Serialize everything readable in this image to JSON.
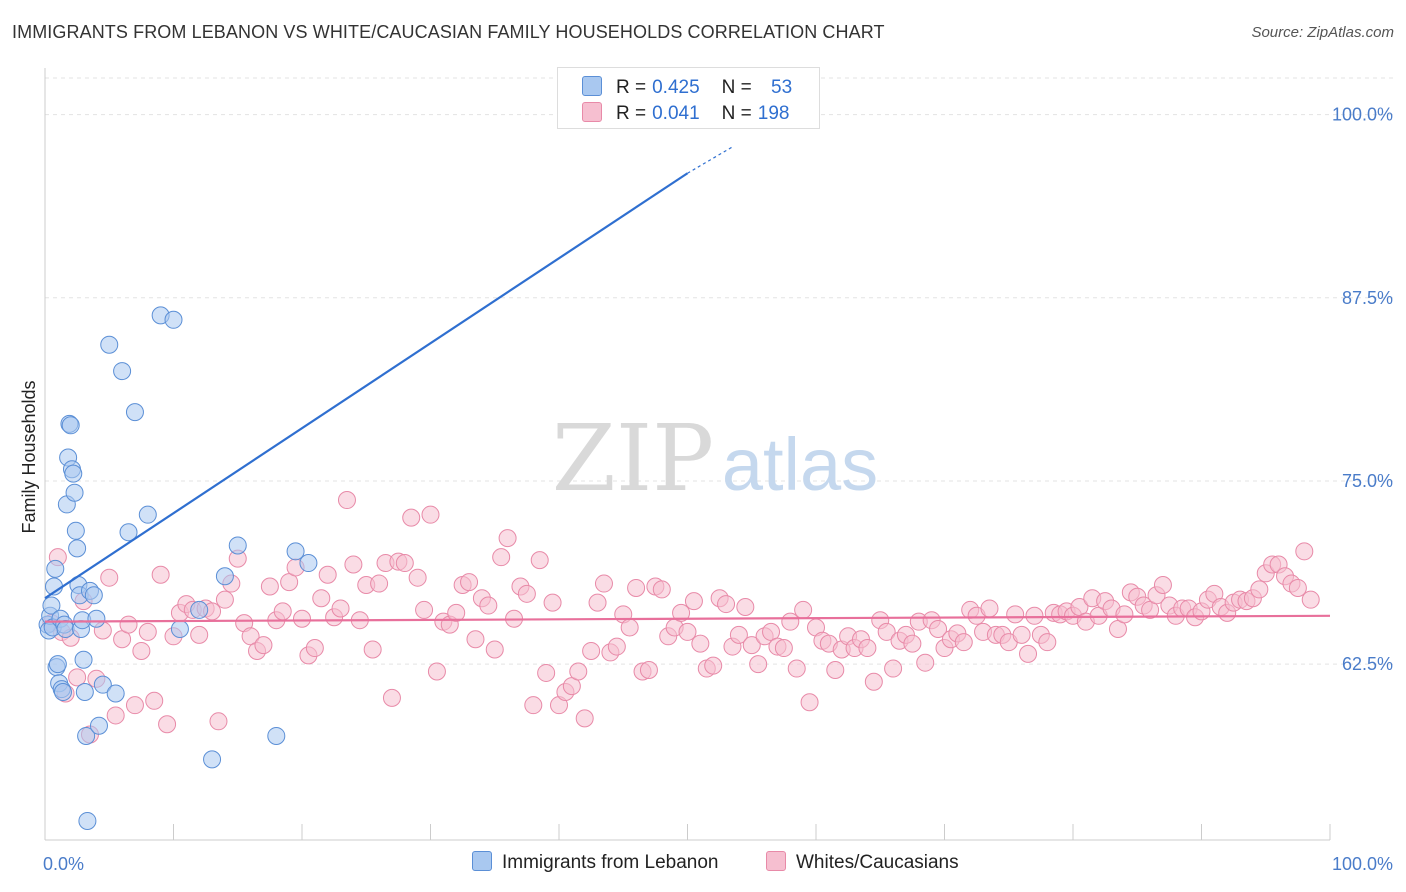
{
  "header": {
    "title": "IMMIGRANTS FROM LEBANON VS WHITE/CAUCASIAN FAMILY HOUSEHOLDS CORRELATION CHART",
    "source": "Source: ZipAtlas.com"
  },
  "watermark": {
    "zip": "ZIP",
    "atlas": "atlas"
  },
  "legend": {
    "rows": [
      {
        "r_label": "R =",
        "r_value": "0.425",
        "n_label": "N =",
        "n_value": "53",
        "color": "#a9c8f0",
        "border": "#5b8fd6"
      },
      {
        "r_label": "R =",
        "r_value": "0.041",
        "n_label": "N =",
        "n_value": "198",
        "color": "#f6bfd0",
        "border": "#e88aa8"
      }
    ]
  },
  "bottom_legend": {
    "series1": "Immigrants from Lebanon",
    "series2": "Whites/Caucasians"
  },
  "chart_data": {
    "type": "scatter",
    "title": "IMMIGRANTS FROM LEBANON VS WHITE/CAUCASIAN FAMILY HOUSEHOLDS CORRELATION CHART",
    "xlabel": "",
    "ylabel": "Family Households",
    "xlim": [
      0,
      100
    ],
    "ylim": [
      50.5,
      102.5
    ],
    "x_tick_labels": [
      "0.0%",
      "100.0%"
    ],
    "y_ticks": [
      62.5,
      75.0,
      87.5,
      100.0
    ],
    "y_tick_labels": [
      "62.5%",
      "75.0%",
      "87.5%",
      "100.0%"
    ],
    "grid": true,
    "series": [
      {
        "name": "Immigrants from Lebanon",
        "color": "#a9c8f0",
        "edge": "#5b8fd6",
        "trend": {
          "x0": 0,
          "y0": 67.0,
          "x1": 50,
          "y1": 96.0,
          "dash_to_x": 53.5,
          "dash_to_y": 97.8,
          "color": "#2f6fd0"
        },
        "points": [
          [
            0.2,
            65.2
          ],
          [
            0.3,
            64.8
          ],
          [
            0.4,
            65.8
          ],
          [
            0.5,
            66.5
          ],
          [
            0.6,
            65.0
          ],
          [
            0.7,
            67.8
          ],
          [
            0.8,
            69.0
          ],
          [
            0.9,
            62.3
          ],
          [
            1.0,
            62.5
          ],
          [
            1.1,
            61.2
          ],
          [
            1.2,
            65.6
          ],
          [
            1.3,
            60.8
          ],
          [
            1.4,
            60.6
          ],
          [
            1.5,
            65.2
          ],
          [
            1.6,
            64.9
          ],
          [
            1.7,
            73.4
          ],
          [
            1.8,
            76.6
          ],
          [
            1.9,
            78.9
          ],
          [
            2.0,
            78.8
          ],
          [
            2.1,
            75.8
          ],
          [
            2.2,
            75.5
          ],
          [
            2.3,
            74.2
          ],
          [
            2.4,
            71.6
          ],
          [
            2.5,
            70.4
          ],
          [
            2.6,
            67.9
          ],
          [
            2.7,
            67.2
          ],
          [
            2.8,
            64.9
          ],
          [
            2.9,
            65.5
          ],
          [
            3.0,
            62.8
          ],
          [
            3.1,
            60.6
          ],
          [
            3.2,
            57.6
          ],
          [
            3.3,
            51.8
          ],
          [
            3.5,
            67.5
          ],
          [
            3.8,
            67.2
          ],
          [
            4.0,
            65.6
          ],
          [
            4.2,
            58.3
          ],
          [
            4.5,
            61.1
          ],
          [
            5.0,
            84.3
          ],
          [
            5.5,
            60.5
          ],
          [
            6.0,
            82.5
          ],
          [
            6.5,
            71.5
          ],
          [
            7.0,
            79.7
          ],
          [
            8.0,
            72.7
          ],
          [
            9.0,
            86.3
          ],
          [
            10.0,
            86.0
          ],
          [
            10.5,
            64.9
          ],
          [
            12.0,
            66.2
          ],
          [
            13.0,
            56.0
          ],
          [
            14.0,
            68.5
          ],
          [
            15.0,
            70.6
          ],
          [
            18.0,
            57.6
          ],
          [
            19.5,
            70.2
          ],
          [
            20.5,
            69.4
          ]
        ]
      },
      {
        "name": "Whites/Caucasians",
        "color": "#f6bfd0",
        "edge": "#e88aa8",
        "trend": {
          "x0": 0,
          "y0": 65.4,
          "x1": 100,
          "y1": 65.8,
          "color": "#e8709b"
        },
        "points": [
          [
            0.5,
            65.3
          ],
          [
            1.0,
            69.8
          ],
          [
            1.3,
            64.7
          ],
          [
            1.6,
            60.5
          ],
          [
            2.0,
            64.3
          ],
          [
            2.5,
            61.6
          ],
          [
            3.0,
            66.8
          ],
          [
            3.5,
            57.7
          ],
          [
            4.0,
            61.5
          ],
          [
            4.5,
            64.8
          ],
          [
            5.0,
            68.4
          ],
          [
            5.5,
            59.0
          ],
          [
            6.0,
            64.2
          ],
          [
            6.5,
            65.2
          ],
          [
            7.0,
            59.7
          ],
          [
            7.5,
            63.4
          ],
          [
            8.0,
            64.7
          ],
          [
            8.5,
            60.0
          ],
          [
            9.0,
            68.6
          ],
          [
            9.5,
            58.4
          ],
          [
            10.0,
            64.4
          ],
          [
            10.5,
            66.0
          ],
          [
            11.0,
            66.6
          ],
          [
            11.5,
            66.2
          ],
          [
            12.0,
            64.5
          ],
          [
            12.5,
            66.3
          ],
          [
            13.0,
            66.1
          ],
          [
            13.5,
            58.6
          ],
          [
            14.0,
            66.9
          ],
          [
            14.5,
            68.0
          ],
          [
            15.0,
            69.7
          ],
          [
            15.5,
            65.3
          ],
          [
            16.0,
            64.4
          ],
          [
            16.5,
            63.4
          ],
          [
            17.0,
            63.8
          ],
          [
            17.5,
            67.8
          ],
          [
            18.0,
            65.5
          ],
          [
            18.5,
            66.1
          ],
          [
            19.0,
            68.1
          ],
          [
            19.5,
            69.1
          ],
          [
            20.0,
            65.6
          ],
          [
            20.5,
            63.1
          ],
          [
            21.0,
            63.6
          ],
          [
            21.5,
            67.0
          ],
          [
            22.0,
            68.6
          ],
          [
            22.5,
            65.7
          ],
          [
            23.0,
            66.3
          ],
          [
            23.5,
            73.7
          ],
          [
            24.0,
            69.3
          ],
          [
            24.5,
            65.5
          ],
          [
            25.0,
            67.9
          ],
          [
            25.5,
            63.5
          ],
          [
            26.0,
            68.0
          ],
          [
            26.5,
            69.4
          ],
          [
            27.0,
            60.2
          ],
          [
            27.5,
            69.5
          ],
          [
            28.0,
            69.4
          ],
          [
            28.5,
            72.5
          ],
          [
            29.0,
            68.4
          ],
          [
            29.5,
            66.2
          ],
          [
            30.0,
            72.7
          ],
          [
            30.5,
            62.0
          ],
          [
            31.0,
            65.4
          ],
          [
            31.5,
            65.2
          ],
          [
            32.0,
            66.0
          ],
          [
            32.5,
            67.9
          ],
          [
            33.0,
            68.1
          ],
          [
            33.5,
            64.2
          ],
          [
            34.0,
            67.0
          ],
          [
            34.5,
            66.5
          ],
          [
            35.0,
            63.5
          ],
          [
            35.5,
            69.8
          ],
          [
            36.0,
            71.1
          ],
          [
            36.5,
            65.6
          ],
          [
            37.0,
            67.8
          ],
          [
            37.5,
            67.3
          ],
          [
            38.0,
            59.7
          ],
          [
            38.5,
            69.6
          ],
          [
            39.0,
            61.9
          ],
          [
            39.5,
            66.7
          ],
          [
            40.0,
            59.7
          ],
          [
            40.5,
            60.6
          ],
          [
            41.0,
            61.0
          ],
          [
            41.5,
            62.0
          ],
          [
            42.0,
            58.8
          ],
          [
            42.5,
            63.4
          ],
          [
            43.0,
            66.7
          ],
          [
            43.5,
            68.0
          ],
          [
            44.0,
            63.3
          ],
          [
            44.5,
            63.7
          ],
          [
            45.0,
            65.9
          ],
          [
            45.5,
            65.0
          ],
          [
            46.0,
            67.7
          ],
          [
            46.5,
            62.0
          ],
          [
            47.0,
            62.1
          ],
          [
            47.5,
            67.8
          ],
          [
            48.0,
            67.6
          ],
          [
            48.5,
            64.4
          ],
          [
            49.0,
            65.0
          ],
          [
            49.5,
            66.0
          ],
          [
            50.0,
            64.7
          ],
          [
            50.5,
            66.8
          ],
          [
            51.0,
            63.9
          ],
          [
            51.5,
            62.2
          ],
          [
            52.0,
            62.4
          ],
          [
            52.5,
            67.0
          ],
          [
            53.0,
            66.6
          ],
          [
            53.5,
            63.7
          ],
          [
            54.0,
            64.5
          ],
          [
            54.5,
            66.4
          ],
          [
            55.0,
            63.8
          ],
          [
            55.5,
            62.5
          ],
          [
            56.0,
            64.4
          ],
          [
            56.5,
            64.7
          ],
          [
            57.0,
            63.7
          ],
          [
            57.5,
            63.6
          ],
          [
            58.0,
            65.4
          ],
          [
            58.5,
            62.2
          ],
          [
            59.0,
            66.2
          ],
          [
            59.5,
            59.9
          ],
          [
            60.0,
            65.0
          ],
          [
            60.5,
            64.1
          ],
          [
            61.0,
            63.9
          ],
          [
            61.5,
            62.1
          ],
          [
            62.0,
            63.5
          ],
          [
            62.5,
            64.4
          ],
          [
            63.0,
            63.6
          ],
          [
            63.5,
            64.2
          ],
          [
            64.0,
            63.6
          ],
          [
            64.5,
            61.3
          ],
          [
            65.0,
            65.5
          ],
          [
            65.5,
            64.7
          ],
          [
            66.0,
            62.2
          ],
          [
            66.5,
            64.1
          ],
          [
            67.0,
            64.5
          ],
          [
            67.5,
            63.9
          ],
          [
            68.0,
            65.4
          ],
          [
            68.5,
            62.6
          ],
          [
            69.0,
            65.5
          ],
          [
            69.5,
            64.9
          ],
          [
            70.0,
            63.6
          ],
          [
            70.5,
            64.2
          ],
          [
            71.0,
            64.6
          ],
          [
            71.5,
            64.0
          ],
          [
            72.0,
            66.2
          ],
          [
            72.5,
            65.8
          ],
          [
            73.0,
            64.7
          ],
          [
            73.5,
            66.3
          ],
          [
            74.0,
            64.5
          ],
          [
            74.5,
            64.5
          ],
          [
            75.0,
            64.0
          ],
          [
            75.5,
            65.9
          ],
          [
            76.0,
            64.5
          ],
          [
            76.5,
            63.2
          ],
          [
            77.0,
            65.8
          ],
          [
            77.5,
            64.5
          ],
          [
            78.0,
            64.0
          ],
          [
            78.5,
            66.0
          ],
          [
            79.0,
            65.9
          ],
          [
            79.5,
            66.1
          ],
          [
            80.0,
            65.8
          ],
          [
            80.5,
            66.4
          ],
          [
            81.0,
            65.4
          ],
          [
            81.5,
            67.0
          ],
          [
            82.0,
            65.8
          ],
          [
            82.5,
            66.8
          ],
          [
            83.0,
            66.3
          ],
          [
            83.5,
            64.9
          ],
          [
            84.0,
            65.9
          ],
          [
            84.5,
            67.4
          ],
          [
            85.0,
            67.1
          ],
          [
            85.5,
            66.5
          ],
          [
            86.0,
            66.2
          ],
          [
            86.5,
            67.2
          ],
          [
            87.0,
            67.9
          ],
          [
            87.5,
            66.5
          ],
          [
            88.0,
            65.8
          ],
          [
            88.5,
            66.3
          ],
          [
            89.0,
            66.3
          ],
          [
            89.5,
            65.7
          ],
          [
            90.0,
            66.1
          ],
          [
            90.5,
            66.9
          ],
          [
            91.0,
            67.3
          ],
          [
            91.5,
            66.4
          ],
          [
            92.0,
            66.0
          ],
          [
            92.5,
            66.7
          ],
          [
            93.0,
            66.9
          ],
          [
            93.5,
            66.8
          ],
          [
            94.0,
            67.0
          ],
          [
            94.5,
            67.6
          ],
          [
            95.0,
            68.7
          ],
          [
            95.5,
            69.3
          ],
          [
            96.0,
            69.3
          ],
          [
            96.5,
            68.5
          ],
          [
            97.0,
            68.0
          ],
          [
            97.5,
            67.7
          ],
          [
            98.0,
            70.2
          ],
          [
            98.5,
            66.9
          ]
        ]
      }
    ]
  }
}
